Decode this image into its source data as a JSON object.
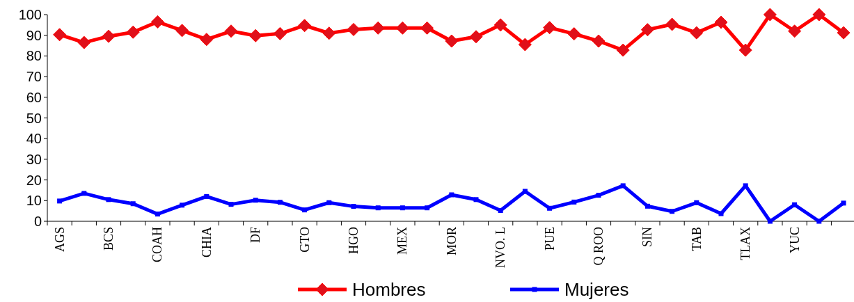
{
  "chart_data": {
    "type": "line",
    "categories": [
      "AGS",
      null,
      "BCS",
      null,
      "COAH",
      null,
      "CHIA",
      null,
      "DF",
      null,
      "GTO",
      null,
      "HGO",
      null,
      "MEX",
      null,
      "MOR",
      null,
      "NVO. L",
      null,
      "PUE",
      null,
      "Q ROO",
      null,
      "SIN",
      null,
      "TAB",
      null,
      "TLAX",
      null,
      "YUC",
      null,
      null
    ],
    "series": [
      {
        "name": "Hombres",
        "color": "#ff0000",
        "marker": "diamond",
        "values": [
          90.3,
          86.5,
          89.5,
          91.5,
          96.5,
          92.3,
          88,
          92,
          89.8,
          90.8,
          94.7,
          91,
          92.8,
          93.5,
          93.5,
          93.5,
          87.2,
          89.3,
          95,
          85.5,
          93.7,
          90.7,
          87.2,
          82.8,
          92.7,
          95.3,
          91.2,
          96.3,
          82.8,
          100,
          92,
          100,
          91.2
        ]
      },
      {
        "name": "Mujeres",
        "color": "#0000ff",
        "marker": "square",
        "values": [
          9.8,
          13.5,
          10.5,
          8.5,
          3.5,
          7.8,
          12,
          8.2,
          10.2,
          9.2,
          5.5,
          9,
          7.2,
          6.5,
          6.5,
          6.5,
          12.8,
          10.5,
          5.2,
          14.5,
          6.3,
          9.3,
          12.6,
          17.2,
          7.3,
          4.8,
          9,
          3.7,
          17.2,
          0,
          8,
          0,
          8.8
        ]
      }
    ],
    "ylim": [
      0,
      100
    ],
    "yticks": [
      0,
      10,
      20,
      30,
      40,
      50,
      60,
      70,
      80,
      90,
      100
    ],
    "grid": false,
    "legend": "bottom"
  }
}
